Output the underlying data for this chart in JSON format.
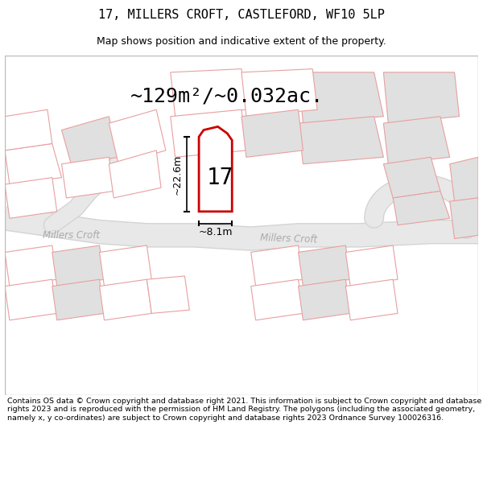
{
  "title": "17, MILLERS CROFT, CASTLEFORD, WF10 5LP",
  "subtitle": "Map shows position and indicative extent of the property.",
  "area_text": "~129m²/~0.032ac.",
  "label_number": "17",
  "dim_height": "~22.6m",
  "dim_width": "~8.1m",
  "road_label_left": "Millers Croft",
  "road_label_right": "Millers Croft",
  "footer": "Contains OS data © Crown copyright and database right 2021. This information is subject to Crown copyright and database rights 2023 and is reproduced with the permission of HM Land Registry. The polygons (including the associated geometry, namely x, y co-ordinates) are subject to Crown copyright and database rights 2023 Ordnance Survey 100026316.",
  "bg_color": "#ffffff",
  "map_bg": "#ffffff",
  "plot_outline_color": "#cc0000",
  "other_outline_color": "#e8a0a0",
  "building_fill": "#e0e0e0",
  "road_fill": "#d4d4d4",
  "title_fontsize": 11,
  "subtitle_fontsize": 9,
  "area_fontsize": 18,
  "number_fontsize": 20,
  "dim_fontsize": 9,
  "footer_fontsize": 6.8
}
